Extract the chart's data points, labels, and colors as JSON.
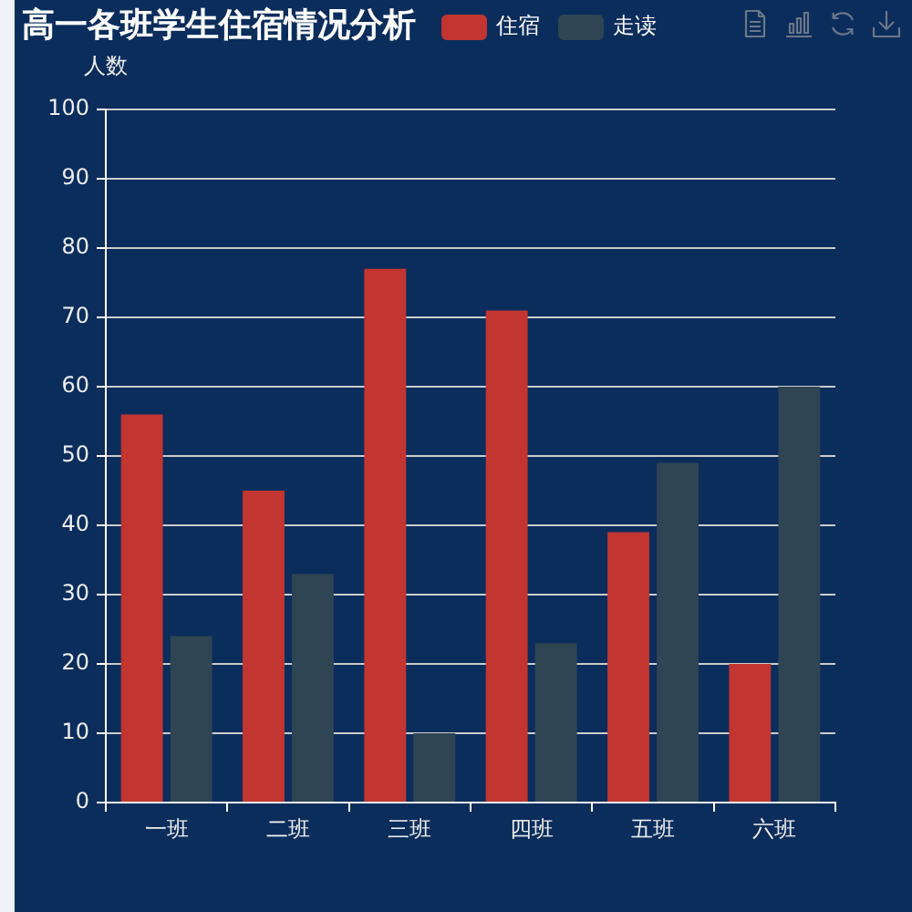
{
  "chart_data": {
    "type": "bar",
    "title": "高一各班学生住宿情况分析",
    "ylabel": "人数",
    "categories": [
      "一班",
      "二班",
      "三班",
      "四班",
      "五班",
      "六班"
    ],
    "series": [
      {
        "name": "住宿",
        "color": "#c23531",
        "values": [
          56,
          45,
          77,
          71,
          39,
          20
        ]
      },
      {
        "name": "走读",
        "color": "#2f4554",
        "values": [
          24,
          33,
          10,
          23,
          49,
          60
        ]
      }
    ],
    "ylim": [
      0,
      100
    ],
    "yticks": [
      0,
      10,
      20,
      30,
      40,
      50,
      60,
      70,
      80,
      90,
      100
    ],
    "grid": "y",
    "legend": "top"
  }
}
